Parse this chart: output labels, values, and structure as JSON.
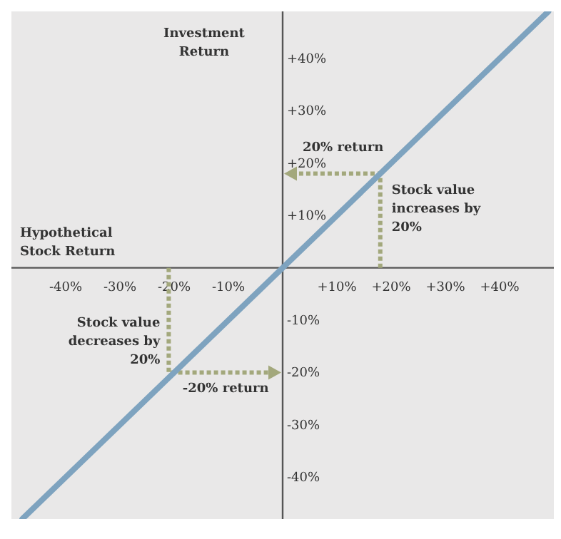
{
  "chart_data": {
    "type": "line",
    "xlabel": "Hypothetical Stock Return",
    "ylabel": "Investment Return",
    "xlim": [
      -50,
      50
    ],
    "ylim": [
      -48,
      49
    ],
    "xticks": [
      {
        "value": -40,
        "label": "-40%"
      },
      {
        "value": -30,
        "label": "-30%"
      },
      {
        "value": -20,
        "label": "-20%"
      },
      {
        "value": -10,
        "label": "-10%"
      },
      {
        "value": 10,
        "label": "+10%"
      },
      {
        "value": 20,
        "label": "+20%"
      },
      {
        "value": 30,
        "label": "+30%"
      },
      {
        "value": 40,
        "label": "+40%"
      }
    ],
    "yticks": [
      {
        "value": -40,
        "label": "-40%"
      },
      {
        "value": -30,
        "label": "-30%"
      },
      {
        "value": -20,
        "label": "-20%"
      },
      {
        "value": -10,
        "label": "-10%"
      },
      {
        "value": 10,
        "label": "+10%"
      },
      {
        "value": 20,
        "label": "+20%"
      },
      {
        "value": 30,
        "label": "+30%"
      },
      {
        "value": 40,
        "label": "+40%"
      }
    ],
    "series": [
      {
        "color": "#7ea3bf",
        "x": [
          -48,
          49
        ],
        "values": [
          -48,
          49
        ],
        "line_style": "solid"
      }
    ],
    "annotations": [
      "20% return",
      {
        "text": "Stock value increases by 20%",
        "x": 18,
        "y": 18
      },
      {
        "text": "Stock value decreases by 20%",
        "x": -21,
        "y": -20
      },
      "-20% return"
    ]
  }
}
